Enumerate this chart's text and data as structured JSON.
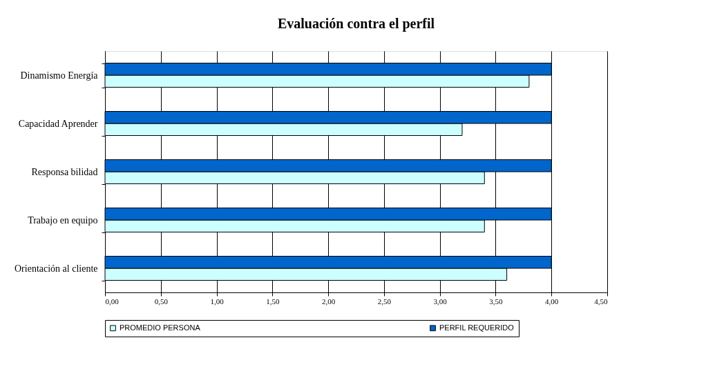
{
  "chart_data": {
    "type": "bar",
    "orientation": "horizontal",
    "title": "Evaluación contra el perfil",
    "categories": [
      "Dinamismo Energía",
      "Capacidad Aprender",
      "Responsa bilidad",
      "Trabajo en equipo",
      "Orientación al cliente"
    ],
    "series": [
      {
        "name": "PROMEDIO PERSONA",
        "color": "#ccffff",
        "values": [
          3.8,
          3.2,
          3.4,
          3.4,
          3.6
        ]
      },
      {
        "name": "PERFIL REQUERIDO",
        "color": "#0066cc",
        "values": [
          4.0,
          4.0,
          4.0,
          4.0,
          4.0
        ]
      }
    ],
    "xlim": [
      0,
      4.5
    ],
    "xticks": [
      {
        "value": 0,
        "label": "0,00"
      },
      {
        "value": 0.5,
        "label": "0,50"
      },
      {
        "value": 1,
        "label": "1,00"
      },
      {
        "value": 1.5,
        "label": "1,50"
      },
      {
        "value": 2,
        "label": "2,00"
      },
      {
        "value": 2.5,
        "label": "2,50"
      },
      {
        "value": 3,
        "label": "3,00"
      },
      {
        "value": 3.5,
        "label": "3,50"
      },
      {
        "value": 4,
        "label": "4,00"
      },
      {
        "value": 4.5,
        "label": "4,50"
      }
    ],
    "grid": "x",
    "legend": "bottom"
  }
}
